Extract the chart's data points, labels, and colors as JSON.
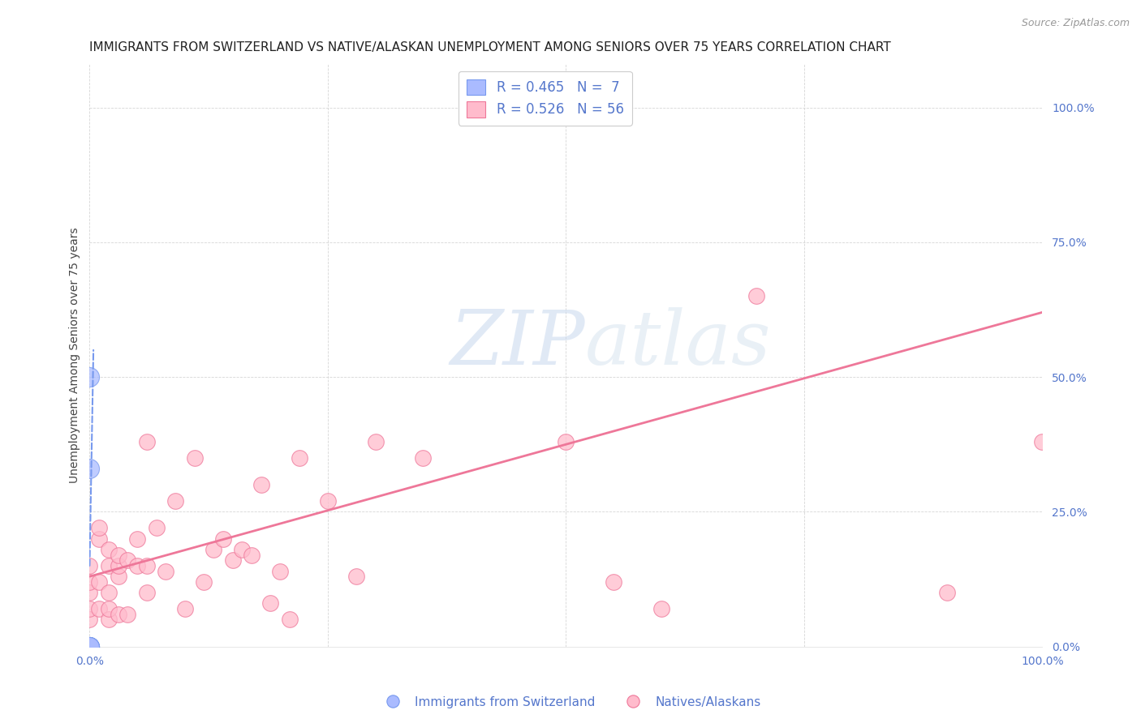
{
  "title": "IMMIGRANTS FROM SWITZERLAND VS NATIVE/ALASKAN UNEMPLOYMENT AMONG SENIORS OVER 75 YEARS CORRELATION CHART",
  "source": "Source: ZipAtlas.com",
  "ylabel": "Unemployment Among Seniors over 75 years",
  "ytick_vals": [
    0.0,
    0.25,
    0.5,
    0.75,
    1.0
  ],
  "ytick_labels": [
    "0.0%",
    "25.0%",
    "50.0%",
    "75.0%",
    "100.0%"
  ],
  "xtick_vals": [
    0.0,
    0.25,
    0.5,
    0.75,
    1.0
  ],
  "xtick_labels": [
    "0.0%",
    "",
    "",
    "",
    "100.0%"
  ],
  "blue_color": "#7799ee",
  "pink_color": "#ee7799",
  "blue_fill_color": "#aabbff",
  "pink_fill_color": "#ffbbcc",
  "background_color": "#ffffff",
  "grid_color": "#cccccc",
  "text_color": "#5577cc",
  "blue_points_x": [
    0.0,
    0.0,
    0.0,
    0.0,
    0.0,
    0.0,
    0.0
  ],
  "blue_points_y": [
    0.0,
    0.0,
    0.0,
    0.0,
    0.33,
    0.5,
    0.0
  ],
  "pink_points_x": [
    0.0,
    0.0,
    0.0,
    0.0,
    0.0,
    0.0,
    0.0,
    0.0,
    0.0,
    0.0,
    0.01,
    0.01,
    0.01,
    0.01,
    0.02,
    0.02,
    0.02,
    0.02,
    0.02,
    0.03,
    0.03,
    0.03,
    0.03,
    0.04,
    0.04,
    0.05,
    0.05,
    0.06,
    0.06,
    0.06,
    0.07,
    0.08,
    0.09,
    0.1,
    0.11,
    0.12,
    0.13,
    0.14,
    0.15,
    0.16,
    0.17,
    0.18,
    0.19,
    0.2,
    0.21,
    0.22,
    0.25,
    0.28,
    0.3,
    0.35,
    0.5,
    0.55,
    0.6,
    0.7,
    0.9,
    1.0
  ],
  "pink_points_y": [
    0.0,
    0.0,
    0.0,
    0.0,
    0.0,
    0.05,
    0.07,
    0.1,
    0.12,
    0.15,
    0.07,
    0.12,
    0.2,
    0.22,
    0.05,
    0.07,
    0.1,
    0.15,
    0.18,
    0.06,
    0.13,
    0.15,
    0.17,
    0.06,
    0.16,
    0.15,
    0.2,
    0.1,
    0.15,
    0.38,
    0.22,
    0.14,
    0.27,
    0.07,
    0.35,
    0.12,
    0.18,
    0.2,
    0.16,
    0.18,
    0.17,
    0.3,
    0.08,
    0.14,
    0.05,
    0.35,
    0.27,
    0.13,
    0.38,
    0.35,
    0.38,
    0.12,
    0.07,
    0.65,
    0.1,
    0.38
  ],
  "blue_trendline_x": [
    0.0,
    0.004
  ],
  "blue_trendline_y": [
    0.15,
    0.55
  ],
  "pink_trendline_x": [
    0.0,
    1.0
  ],
  "pink_trendline_y": [
    0.13,
    0.62
  ],
  "watermark_zip": "ZIP",
  "watermark_atlas": "atlas",
  "title_fontsize": 11,
  "source_fontsize": 9,
  "axis_label_fontsize": 10,
  "tick_fontsize": 10,
  "legend_fontsize": 12
}
